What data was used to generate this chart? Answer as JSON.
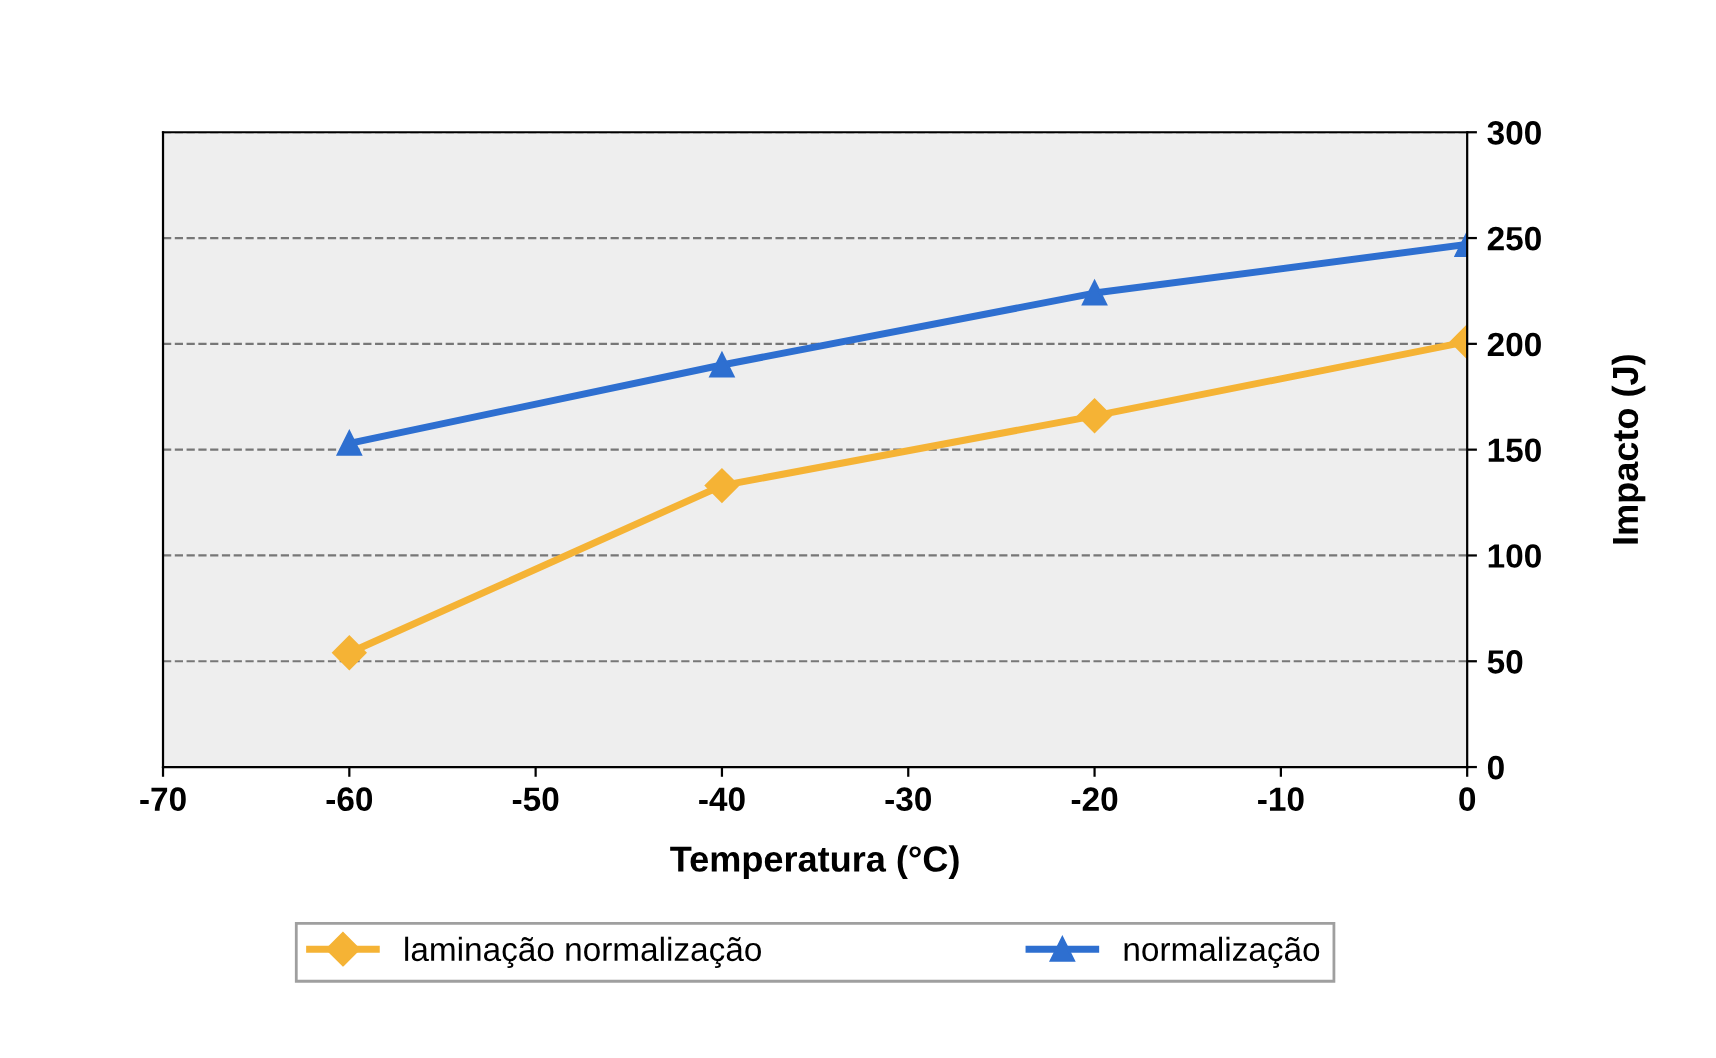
{
  "chart_data": {
    "type": "line",
    "xlabel": "Temperatura (°C)",
    "ylabel": "Impacto (J)",
    "x": [
      -60,
      -40,
      -20,
      0
    ],
    "series": [
      {
        "name": "laminação normalização",
        "color": "#f5b335",
        "marker": "diamond",
        "values": [
          54,
          133,
          166,
          201
        ]
      },
      {
        "name": "normalização",
        "color": "#2e6fd0",
        "marker": "triangle",
        "values": [
          153,
          190,
          224,
          247
        ]
      }
    ],
    "xlim": [
      -70,
      0
    ],
    "xticks": [
      -70,
      -60,
      -50,
      -40,
      -30,
      -20,
      -10,
      0
    ],
    "ylim": [
      0,
      300
    ],
    "yticks": [
      0,
      50,
      100,
      150,
      200,
      250,
      300
    ],
    "grid": "y",
    "legend": "bottom",
    "line_style": "solid"
  }
}
